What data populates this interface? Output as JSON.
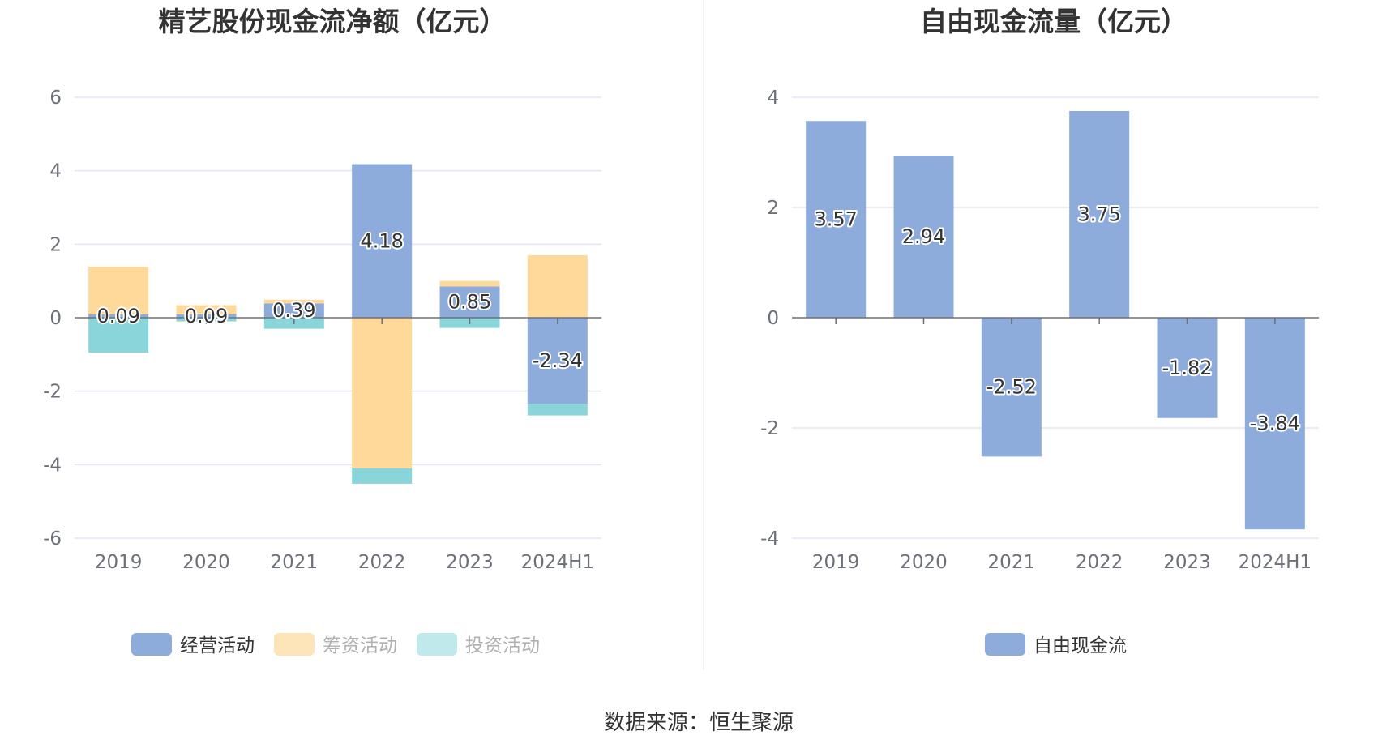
{
  "source": "数据来源：恒生聚源",
  "colors": {
    "operating": "#8dacdb",
    "financing": "#fed99a",
    "investing": "#8ad5d9",
    "free": "#8dacdb"
  },
  "chart_data": [
    {
      "type": "bar",
      "stacked": true,
      "title": "精艺股份现金流净额（亿元）",
      "categories": [
        "2019",
        "2020",
        "2021",
        "2022",
        "2023",
        "2024H1"
      ],
      "ylim": [
        -6,
        6
      ],
      "yticks": [
        6,
        4,
        2,
        0,
        -2,
        -4,
        -6
      ],
      "grid": true,
      "legend_position": "bottom",
      "series": [
        {
          "name": "经营活动",
          "values": [
            0.09,
            0.09,
            0.39,
            4.18,
            0.85,
            -2.34
          ],
          "labels": [
            "0.09",
            "0.09",
            "0.39",
            "4.18",
            "0.85",
            "-2.34"
          ]
        },
        {
          "name": "筹资活动",
          "values": [
            1.3,
            0.25,
            0.1,
            -4.1,
            0.15,
            1.7
          ]
        },
        {
          "name": "投资活动",
          "values": [
            -0.95,
            -0.1,
            -0.3,
            -0.42,
            -0.28,
            -0.32
          ]
        }
      ]
    },
    {
      "type": "bar",
      "title": "自由现金流量（亿元）",
      "categories": [
        "2019",
        "2020",
        "2021",
        "2022",
        "2023",
        "2024H1"
      ],
      "ylim": [
        -4,
        4
      ],
      "yticks": [
        4,
        2,
        0,
        -2,
        -4
      ],
      "grid": true,
      "legend_position": "bottom",
      "series": [
        {
          "name": "自由现金流",
          "values": [
            3.57,
            2.94,
            -2.52,
            3.75,
            -1.82,
            -3.84
          ],
          "labels": [
            "3.57",
            "2.94",
            "-2.52",
            "3.75",
            "-1.82",
            "-3.84"
          ]
        }
      ]
    }
  ]
}
